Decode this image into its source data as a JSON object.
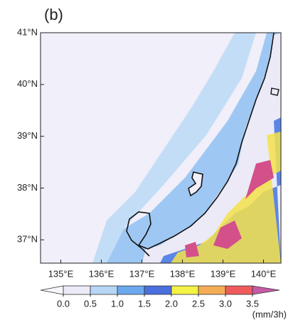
{
  "panel_label": "(b)",
  "map": {
    "xlim": [
      134.5,
      140.43
    ],
    "ylim": [
      36.55,
      41
    ],
    "xticks": [
      {
        "value": 135,
        "label": "135°E"
      },
      {
        "value": 136,
        "label": "136°E"
      },
      {
        "value": 137,
        "label": "137°E"
      },
      {
        "value": 138,
        "label": "138°E"
      },
      {
        "value": 139,
        "label": "139°E"
      },
      {
        "value": 140,
        "label": "140°E"
      }
    ],
    "yticks": [
      {
        "value": 37,
        "label": "37°N"
      },
      {
        "value": 38,
        "label": "38°N"
      },
      {
        "value": 39,
        "label": "39°N"
      },
      {
        "value": 40,
        "label": "40°N"
      },
      {
        "value": 41,
        "label": "41°N"
      }
    ]
  },
  "colorbar": {
    "levels": [
      {
        "value": 0,
        "label": "0.0"
      },
      {
        "value": 0.5,
        "label": "0.5"
      },
      {
        "value": 1,
        "label": "1.0"
      },
      {
        "value": 1.5,
        "label": "1.5"
      },
      {
        "value": 2,
        "label": "2.0"
      },
      {
        "value": 2.5,
        "label": "2.5"
      },
      {
        "value": 3,
        "label": "3.0"
      },
      {
        "value": 3.5,
        "label": "3.5"
      }
    ],
    "colors": [
      "#f7f7fb",
      "#eceaf7",
      "#b7d6f6",
      "#6ca8ee",
      "#4a6fdf",
      "#f4f244",
      "#f5ad55",
      "#ef5b5b",
      "#c65aa6"
    ],
    "unit": "(mm/3h)"
  }
}
